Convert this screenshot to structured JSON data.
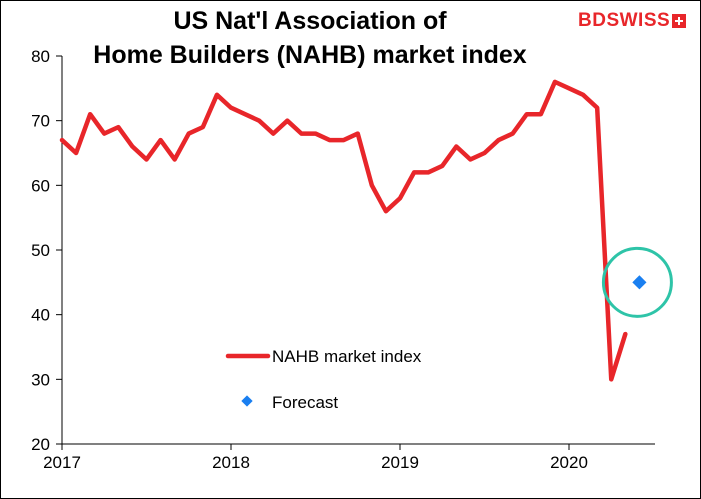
{
  "chart_data": {
    "type": "line",
    "title_line1": "US Nat'l Association of",
    "title_line2": "Home Builders (NAHB) market index",
    "xlabel": "",
    "ylabel": "",
    "ylim": [
      20,
      80
    ],
    "yticks": [
      20,
      30,
      40,
      50,
      60,
      70,
      80
    ],
    "xtick_labels": [
      "2017",
      "2018",
      "2019",
      "2020"
    ],
    "grid": false,
    "legend_position": "center",
    "x_start": "2017-01",
    "series": [
      {
        "name": "NAHB market index",
        "color": "#e8262a",
        "values": [
          67,
          65,
          71,
          68,
          69,
          66,
          64,
          67,
          64,
          68,
          69,
          74,
          72,
          71,
          70,
          68,
          70,
          68,
          68,
          67,
          67,
          68,
          60,
          56,
          58,
          62,
          62,
          63,
          66,
          64,
          65,
          67,
          68,
          71,
          71,
          76,
          75,
          74,
          72,
          30,
          37
        ]
      },
      {
        "name": "Forecast",
        "color": "#1a7ff0",
        "type": "marker",
        "points": [
          {
            "x": "2020-06",
            "y": 45
          }
        ]
      }
    ],
    "annotations": [
      {
        "type": "circle",
        "color": "#2ec4a8",
        "around": "Forecast"
      }
    ]
  },
  "logo": {
    "text": "BDSWISS"
  }
}
